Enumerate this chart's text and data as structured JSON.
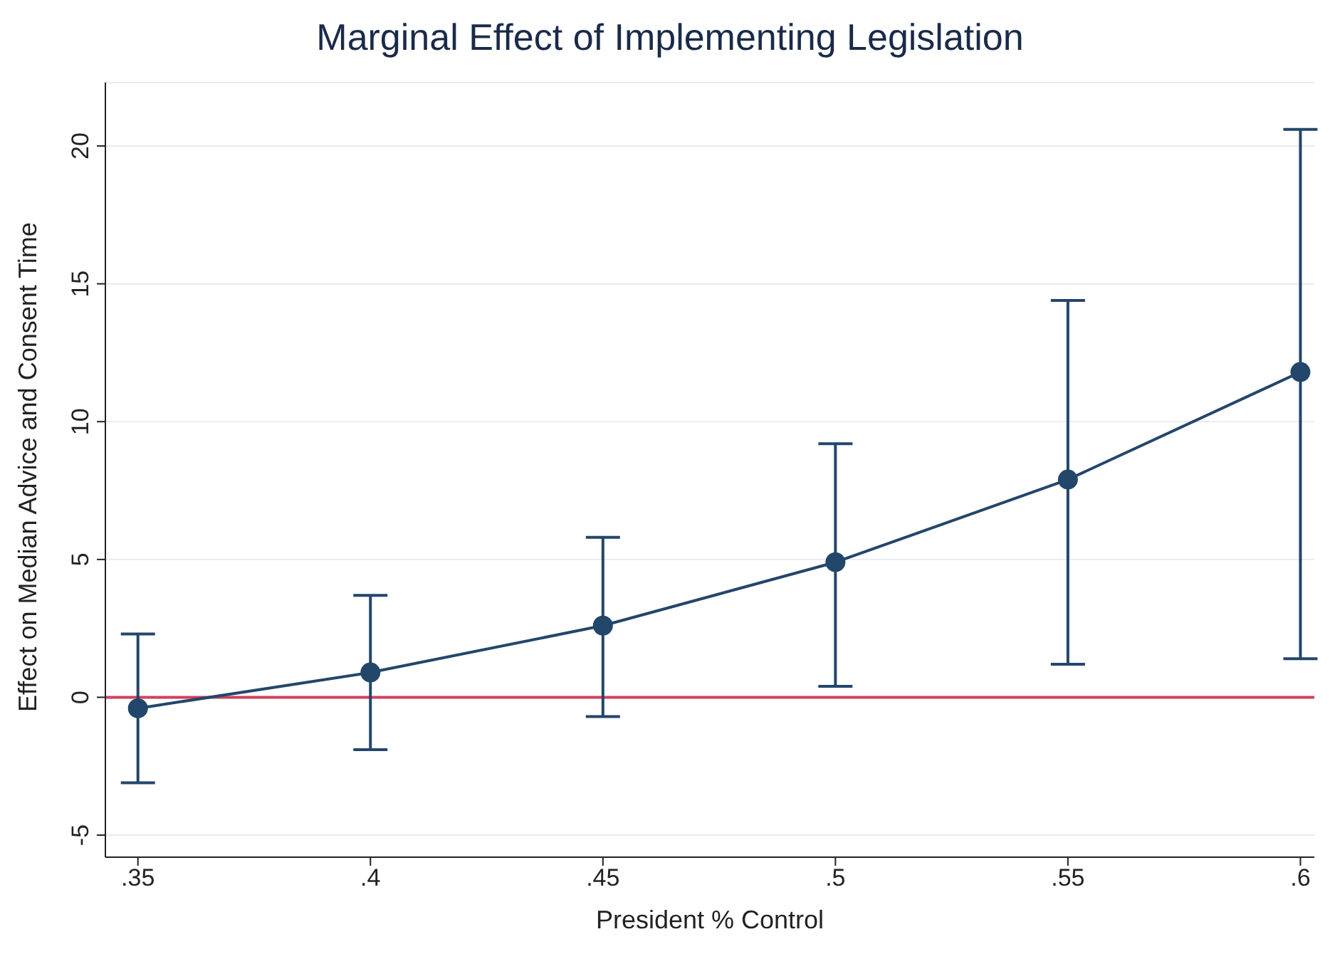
{
  "chart_data": {
    "type": "line",
    "title": "Marginal Effect of Implementing Legislation",
    "xlabel": "President % Control",
    "ylabel": "Effect on Median Advice and Consent Time",
    "x": [
      0.35,
      0.4,
      0.45,
      0.5,
      0.55,
      0.6
    ],
    "series": [
      {
        "color": "#23466b",
        "values": [
          -0.4,
          0.9,
          2.6,
          4.9,
          7.9,
          11.8
        ],
        "errors": [
          [
            -3.1,
            2.3
          ],
          [
            -1.9,
            3.7
          ],
          [
            -0.7,
            5.8
          ],
          [
            0.4,
            9.2
          ],
          [
            1.2,
            14.4
          ],
          [
            1.4,
            20.6
          ]
        ]
      }
    ],
    "xlim": [
      0.343,
      0.603
    ],
    "xticks": [
      {
        "value": 0.35,
        "label": ".35"
      },
      {
        "value": 0.4,
        "label": ".4"
      },
      {
        "value": 0.45,
        "label": ".45"
      },
      {
        "value": 0.5,
        "label": ".5"
      },
      {
        "value": 0.55,
        "label": ".55"
      },
      {
        "value": 0.6,
        "label": ".6"
      }
    ],
    "ylim": [
      -5.8,
      22.3
    ],
    "yticks": [
      -5,
      0,
      5,
      10,
      15,
      20
    ],
    "ref_lines": [
      {
        "axis": "y",
        "value": 0,
        "color": "#d1405d"
      }
    ],
    "grid": "y",
    "marker": "circle",
    "line_style": "solid"
  }
}
